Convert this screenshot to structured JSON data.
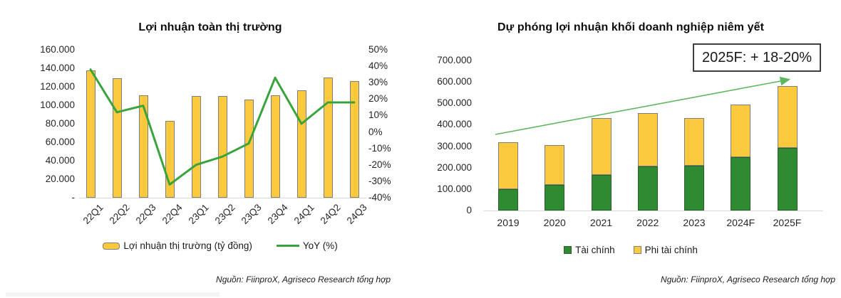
{
  "page": {
    "background": "#ffffff",
    "divider_color": "#f4f4f4"
  },
  "colors": {
    "bar_yellow": "#FAC93E",
    "bar_yellow_border": "#7f7f7f",
    "bar_green": "#2E8B31",
    "bar_green_border": "#2d5f2d",
    "yoy_line_green": "#3AA43C",
    "trend_arrow_green": "#5FB75F",
    "axis_line": "#d9d9d9",
    "annotation_border": "#3f3f3f"
  },
  "chart_data": [
    {
      "type": "combo-bar-line",
      "title": "Lợi nhuận toàn thị trường",
      "categories": [
        "22Q1",
        "22Q2",
        "22Q3",
        "22Q4",
        "23Q1",
        "23Q2",
        "23Q3",
        "23Q4",
        "24Q1",
        "24Q2",
        "24Q3"
      ],
      "series": [
        {
          "name": "Lợi nhuận thị trường (tỷ đồng)",
          "kind": "bar",
          "axis": "left",
          "color": "#FAC93E",
          "values": [
            138000,
            129000,
            111000,
            83000,
            110000,
            110000,
            106000,
            111000,
            116000,
            130000,
            126000
          ]
        },
        {
          "name": "YoY (%)",
          "kind": "line",
          "axis": "right",
          "color": "#3AA43C",
          "values": [
            38,
            12,
            16,
            -32,
            -20,
            -15,
            -7,
            33,
            5,
            18,
            18
          ]
        }
      ],
      "y_left": {
        "min": 0,
        "max": 160000,
        "ticks": [
          "160.000",
          "140.000",
          "120.000",
          "100.000",
          "80.000",
          "60.000",
          "40.000",
          "20.000",
          "-"
        ]
      },
      "y_right": {
        "min": -40,
        "max": 50,
        "ticks": [
          "50%",
          "40%",
          "30%",
          "20%",
          "10%",
          "0%",
          "-10%",
          "-20%",
          "-30%",
          "-40%"
        ]
      },
      "legend_position": "bottom",
      "grid": false,
      "source": "Nguồn: FiinproX, Agriseco Research tổng hợp"
    },
    {
      "type": "bar",
      "subtype": "stacked",
      "title": "Dự phóng lợi nhuận khối doanh nghiệp niêm yết",
      "categories": [
        "2019",
        "2020",
        "2021",
        "2022",
        "2023",
        "2024F",
        "2025F"
      ],
      "series": [
        {
          "name": "Tài chính",
          "kind": "bar",
          "color": "#2E8B31",
          "values": [
            100000,
            120000,
            165000,
            205000,
            210000,
            248000,
            292000
          ]
        },
        {
          "name": "Phi tài chính",
          "kind": "bar",
          "color": "#FAC93E",
          "values": [
            220000,
            185000,
            265000,
            250000,
            220000,
            247000,
            288000
          ]
        }
      ],
      "totals": [
        320000,
        305000,
        430000,
        455000,
        430000,
        495000,
        580000
      ],
      "y": {
        "min": 0,
        "max": 700000,
        "ticks": [
          "700.000",
          "600.000",
          "500.000",
          "400.000",
          "300.000",
          "200.000",
          "100.000",
          "0"
        ]
      },
      "annotation": "2025F: + 18-20%",
      "trend_arrow": true,
      "legend_position": "bottom",
      "grid": false,
      "source": "Nguồn: FiinproX, Agriseco Research tổng hợp"
    }
  ]
}
